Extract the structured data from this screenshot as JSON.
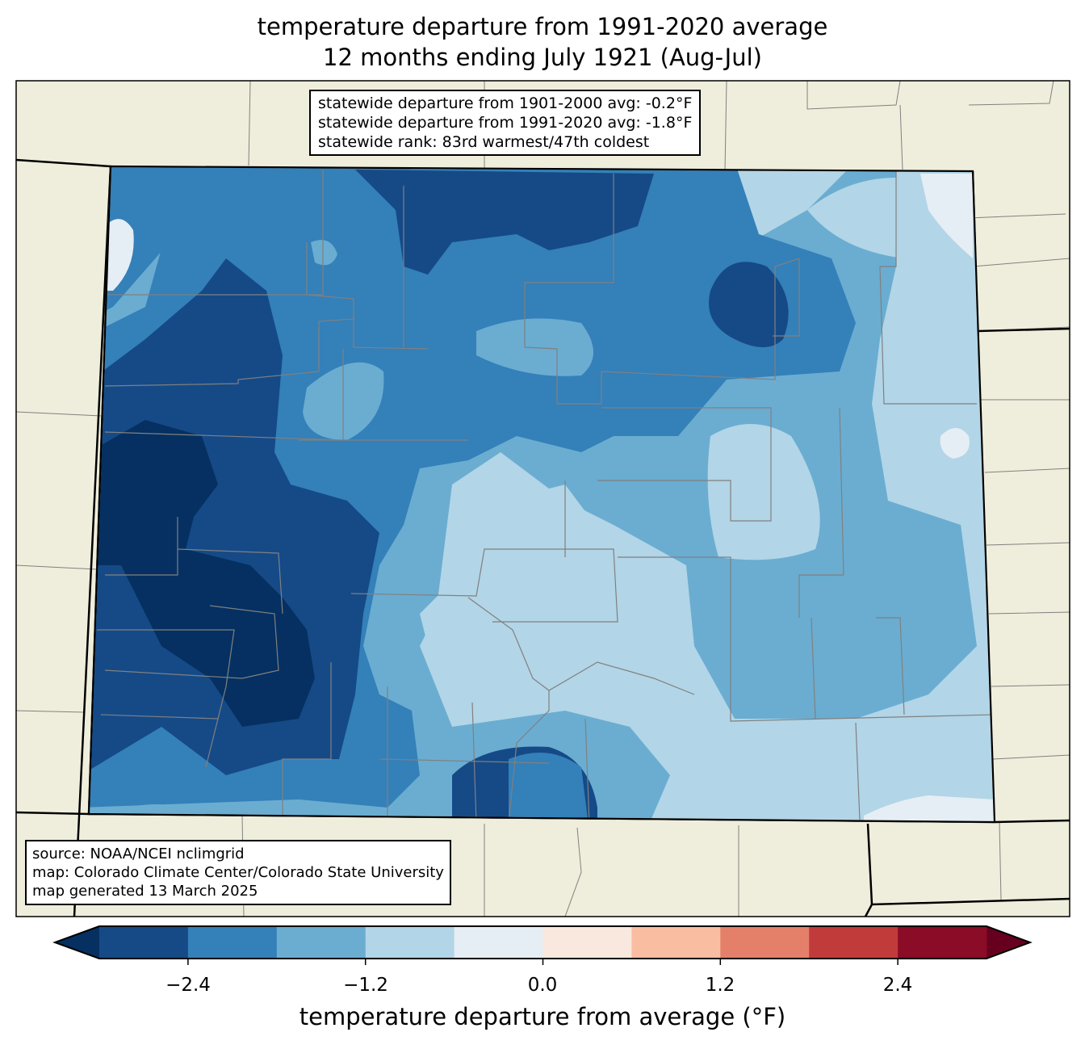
{
  "title_line1": "temperature departure from 1991-2020 average",
  "title_line2": "12 months ending July 1921 (Aug-Jul)",
  "stats": {
    "line1": "statewide departure from 1901-2000 avg: -0.2°F",
    "line2": "statewide departure from 1991-2020 avg: -1.8°F",
    "line3": "statewide rank: 83rd warmest/47th coldest"
  },
  "source": {
    "line1": "source: NOAA/NCEI nclimgrid",
    "line2": "map: Colorado Climate Center/Colorado State University",
    "line3": "map generated 13 March 2025"
  },
  "colors": {
    "background": "#efeedc",
    "county_lines": "#808080",
    "under": "#053061",
    "over": "#67001f",
    "bins": [
      "#154a87",
      "#3480b9",
      "#6aadd1",
      "#b2d5e7",
      "#e5eef4",
      "#f9e8dd",
      "#f9bda2",
      "#e4806a",
      "#c23b3b",
      "#8a0c26"
    ]
  },
  "chart_data": {
    "type": "heatmap",
    "title": "temperature departure from 1991-2020 average — 12 months ending July 1921 (Aug-Jul)",
    "region": "Colorado",
    "colorbar": {
      "label": "temperature departure from average (°F)",
      "range": [
        -3.0,
        3.0
      ],
      "bin_edges": [
        -3.0,
        -2.4,
        -1.8,
        -1.2,
        -0.6,
        0.0,
        0.6,
        1.2,
        1.8,
        2.4,
        3.0
      ],
      "ticks": [
        "−2.4",
        "−1.2",
        "0.0",
        "1.2",
        "2.4"
      ],
      "extend": "both"
    },
    "summary": {
      "west_mountains": "below -3.0 to -2.4",
      "northeast_plains": "-1.2 to -0.6",
      "san_luis_valley": "-1.2 to -0.6",
      "statewide_departure_1991_2020": -1.8
    }
  }
}
